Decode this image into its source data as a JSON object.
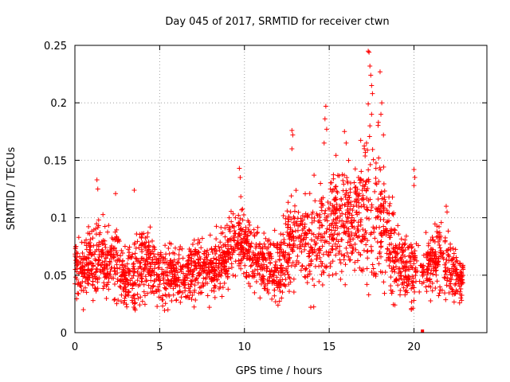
{
  "chart_data": {
    "type": "scatter",
    "title": "Day 045 of 2017, SRMTID for receiver ctwn",
    "xlabel": "GPS time / hours",
    "ylabel": "SRMTID / TECUs",
    "xlim": [
      0,
      24.3
    ],
    "ylim": [
      0,
      0.25
    ],
    "xticks": [
      0,
      5,
      10,
      15,
      20
    ],
    "yticks": [
      0,
      0.05,
      0.1,
      0.15,
      0.2,
      0.25
    ],
    "xtick_labels": [
      "0",
      "5",
      "10",
      "15",
      "20"
    ],
    "ytick_labels": [
      "0",
      "0.05",
      "0.1",
      "0.15",
      "0.2",
      "0.25"
    ],
    "grid": true,
    "marker": "plus",
    "color": "#ff0000",
    "series": [
      {
        "name": "SRMTID",
        "profile": {
          "x": [
            0,
            1,
            1.5,
            2,
            2.5,
            3,
            3.5,
            4,
            5,
            6,
            7,
            8,
            9,
            9.5,
            10,
            11,
            12,
            12.5,
            13,
            13.5,
            14,
            14.5,
            15,
            15.5,
            16,
            16.5,
            17,
            17.5,
            18,
            18.5,
            19,
            19.5,
            20,
            20.5,
            21,
            21.5,
            22,
            22.5,
            22.9
          ],
          "center": [
            0.055,
            0.058,
            0.07,
            0.06,
            0.065,
            0.045,
            0.05,
            0.06,
            0.05,
            0.05,
            0.052,
            0.055,
            0.065,
            0.085,
            0.075,
            0.06,
            0.055,
            0.07,
            0.085,
            0.08,
            0.075,
            0.085,
            0.09,
            0.1,
            0.1,
            0.1,
            0.11,
            0.11,
            0.1,
            0.085,
            0.06,
            0.055,
            0.05,
            0.055,
            0.06,
            0.065,
            0.06,
            0.05,
            0.045
          ],
          "spread": [
            0.012,
            0.015,
            0.02,
            0.016,
            0.018,
            0.012,
            0.018,
            0.018,
            0.014,
            0.014,
            0.014,
            0.015,
            0.015,
            0.018,
            0.017,
            0.015,
            0.016,
            0.02,
            0.024,
            0.02,
            0.02,
            0.024,
            0.026,
            0.022,
            0.025,
            0.024,
            0.03,
            0.035,
            0.03,
            0.025,
            0.018,
            0.015,
            0.018,
            0.012,
            0.014,
            0.014,
            0.015,
            0.012,
            0.01
          ]
        },
        "outliers": [
          {
            "x": 1.3,
            "y": 0.133
          },
          {
            "x": 1.35,
            "y": 0.125
          },
          {
            "x": 2.4,
            "y": 0.121
          },
          {
            "x": 3.5,
            "y": 0.124
          },
          {
            "x": 9.7,
            "y": 0.143
          },
          {
            "x": 9.75,
            "y": 0.135
          },
          {
            "x": 12.8,
            "y": 0.176
          },
          {
            "x": 12.85,
            "y": 0.172
          },
          {
            "x": 12.8,
            "y": 0.16
          },
          {
            "x": 14.8,
            "y": 0.197
          },
          {
            "x": 14.75,
            "y": 0.186
          },
          {
            "x": 14.85,
            "y": 0.177
          },
          {
            "x": 14.7,
            "y": 0.165
          },
          {
            "x": 15.9,
            "y": 0.175
          },
          {
            "x": 16.0,
            "y": 0.165
          },
          {
            "x": 17.3,
            "y": 0.245
          },
          {
            "x": 17.35,
            "y": 0.244
          },
          {
            "x": 17.4,
            "y": 0.232
          },
          {
            "x": 17.45,
            "y": 0.224
          },
          {
            "x": 17.5,
            "y": 0.215
          },
          {
            "x": 17.55,
            "y": 0.208
          },
          {
            "x": 17.3,
            "y": 0.199
          },
          {
            "x": 17.5,
            "y": 0.19
          },
          {
            "x": 17.4,
            "y": 0.18
          },
          {
            "x": 18.0,
            "y": 0.227
          },
          {
            "x": 18.1,
            "y": 0.2
          },
          {
            "x": 18.05,
            "y": 0.19
          },
          {
            "x": 17.9,
            "y": 0.183
          },
          {
            "x": 18.2,
            "y": 0.172
          },
          {
            "x": 17.2,
            "y": 0.165
          },
          {
            "x": 20.0,
            "y": 0.142
          },
          {
            "x": 20.05,
            "y": 0.135
          },
          {
            "x": 20.0,
            "y": 0.128
          },
          {
            "x": 21.9,
            "y": 0.11
          },
          {
            "x": 21.95,
            "y": 0.105
          },
          {
            "x": 0.5,
            "y": 0.02
          },
          {
            "x": 20.5,
            "y": 0.0
          }
        ]
      }
    ]
  }
}
